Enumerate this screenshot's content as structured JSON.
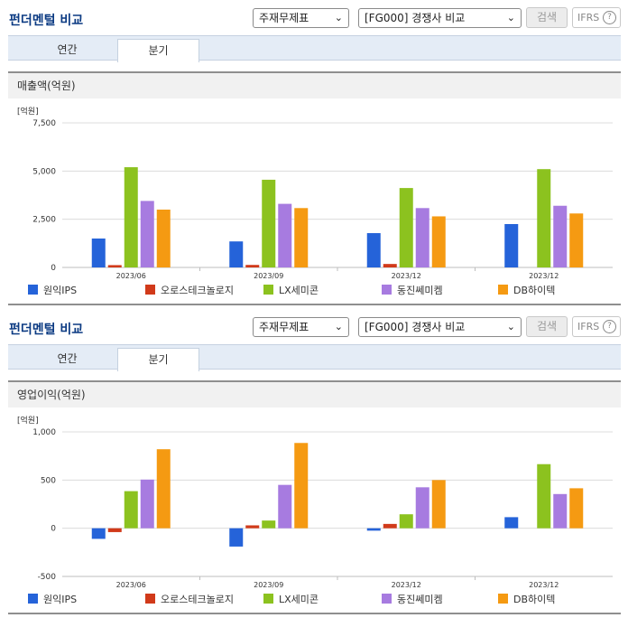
{
  "panels": [
    {
      "title": "펀더멘털 비교",
      "select_type": "주재무제표",
      "select_compare": "[FG000] 경쟁사 비교",
      "search_label": "검색",
      "ifrs_label": "IFRS",
      "help_label": "?",
      "tabs": [
        "연간",
        "분기"
      ],
      "active_tab": 1,
      "section_title": "매출액(억원)"
    },
    {
      "title": "펀더멘털 비교",
      "select_type": "주재무제표",
      "select_compare": "[FG000] 경쟁사 비교",
      "search_label": "검색",
      "ifrs_label": "IFRS",
      "help_label": "?",
      "tabs": [
        "연간",
        "분기"
      ],
      "active_tab": 1,
      "section_title": "영업이익(억원)"
    }
  ],
  "chart_data": [
    {
      "type": "bar",
      "unit_label": "[억원]",
      "categories": [
        "2023/06",
        "2023/09",
        "2023/12",
        "2023/12"
      ],
      "ylim": [
        0,
        7500
      ],
      "yticks": [
        0,
        2500,
        5000,
        7500
      ],
      "ytick_labels": [
        "0",
        "2,500",
        "5,000",
        "7,500"
      ],
      "legend_position": "bottom",
      "series": [
        {
          "name": "원익IPS",
          "color": "#2563d9",
          "values": [
            1500,
            1350,
            1780,
            2250
          ]
        },
        {
          "name": "오로스테크놀로지",
          "color": "#d13a1a",
          "values": [
            120,
            130,
            180,
            null
          ]
        },
        {
          "name": "LX세미콘",
          "color": "#8cc21f",
          "values": [
            5200,
            4550,
            4120,
            5100
          ]
        },
        {
          "name": "동진쎄미켐",
          "color": "#a77be0",
          "values": [
            3450,
            3300,
            3080,
            3200
          ]
        },
        {
          "name": "DB하이텍",
          "color": "#f59a12",
          "values": [
            3000,
            3080,
            2650,
            2800
          ]
        }
      ]
    },
    {
      "type": "bar",
      "unit_label": "[억원]",
      "categories": [
        "2023/06",
        "2023/09",
        "2023/12",
        "2023/12"
      ],
      "ylim": [
        -500,
        1000
      ],
      "yticks": [
        -500,
        0,
        500,
        1000
      ],
      "ytick_labels": [
        "-500",
        "0",
        "500",
        "1,000"
      ],
      "legend_position": "bottom",
      "series": [
        {
          "name": "원익IPS",
          "color": "#2563d9",
          "values": [
            -110,
            -190,
            -25,
            115
          ]
        },
        {
          "name": "오로스테크놀로지",
          "color": "#d13a1a",
          "values": [
            -40,
            30,
            45,
            null
          ]
        },
        {
          "name": "LX세미콘",
          "color": "#8cc21f",
          "values": [
            385,
            80,
            145,
            665
          ]
        },
        {
          "name": "동진쎄미켐",
          "color": "#a77be0",
          "values": [
            505,
            450,
            425,
            355
          ]
        },
        {
          "name": "DB하이텍",
          "color": "#f59a12",
          "values": [
            820,
            885,
            500,
            415
          ]
        }
      ]
    }
  ]
}
